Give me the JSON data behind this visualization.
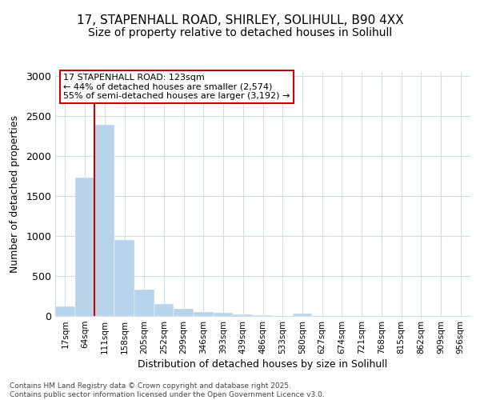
{
  "title_line1": "17, STAPENHALL ROAD, SHIRLEY, SOLIHULL, B90 4XX",
  "title_line2": "Size of property relative to detached houses in Solihull",
  "xlabel": "Distribution of detached houses by size in Solihull",
  "ylabel": "Number of detached properties",
  "categories": [
    "17sqm",
    "64sqm",
    "111sqm",
    "158sqm",
    "205sqm",
    "252sqm",
    "299sqm",
    "346sqm",
    "393sqm",
    "439sqm",
    "486sqm",
    "533sqm",
    "580sqm",
    "627sqm",
    "674sqm",
    "721sqm",
    "768sqm",
    "815sqm",
    "862sqm",
    "909sqm",
    "956sqm"
  ],
  "values": [
    120,
    1730,
    2390,
    950,
    335,
    155,
    90,
    55,
    40,
    22,
    15,
    0,
    30,
    0,
    0,
    0,
    0,
    0,
    0,
    0,
    0
  ],
  "bar_color": "#b8d4ea",
  "vline_color": "#cc0000",
  "vline_index": 2,
  "annotation_text": "17 STAPENHALL ROAD: 123sqm\n← 44% of detached houses are smaller (2,574)\n55% of semi-detached houses are larger (3,192) →",
  "annotation_box_facecolor": "#ffffff",
  "annotation_box_edgecolor": "#cc0000",
  "ylim": [
    0,
    3050
  ],
  "yticks": [
    0,
    500,
    1000,
    1500,
    2000,
    2500,
    3000
  ],
  "footnote": "Contains HM Land Registry data © Crown copyright and database right 2025.\nContains public sector information licensed under the Open Government Licence v3.0.",
  "bg_color": "#ffffff",
  "grid_color": "#d0dce8",
  "title_fontsize": 11,
  "subtitle_fontsize": 10
}
